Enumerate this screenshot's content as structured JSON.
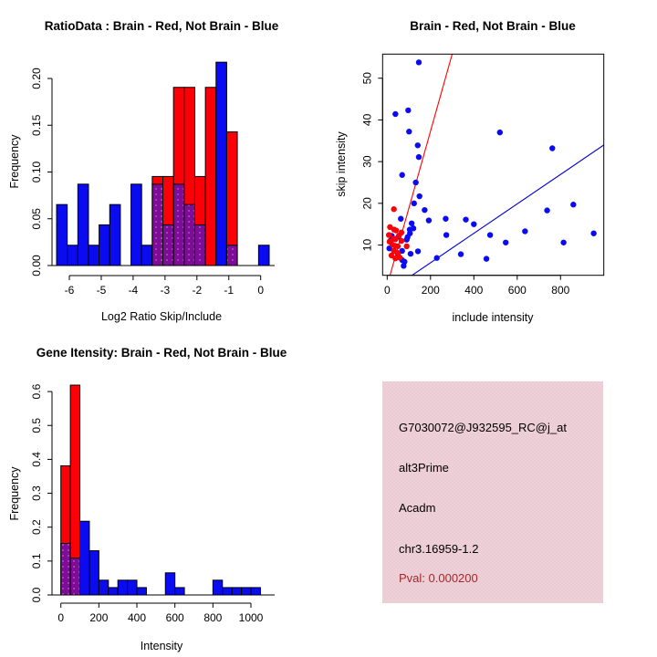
{
  "colors": {
    "red": "#fb0006",
    "blue": "#0b0bf2",
    "overlap_purple": "#7d0d96",
    "overlap_dot": "#c85ad6",
    "red_line": "#fb0006",
    "blue_line": "#0000d6",
    "axis": "#000000",
    "info_box_pink": "#f0c9d2",
    "pval_text": "#a32929"
  },
  "chart_data": [
    {
      "type": "bar",
      "subtype": "overlaid-histogram",
      "title": "RatioData : Brain - Red, Not Brain - Blue",
      "xlabel": "Log2 Ratio Skip/Include",
      "ylabel": "Frequency",
      "series": [
        {
          "name": "Brain",
          "color": "red"
        },
        {
          "name": "Not Brain",
          "color": "blue"
        }
      ],
      "bin_width": 0.3333,
      "x_ticks": [
        -6,
        -5,
        -4,
        -3,
        -2,
        -1,
        0
      ],
      "x_tick_labels": [
        "-6",
        "-5",
        "-4",
        "-3",
        "-2",
        "-1",
        "0"
      ],
      "y_ticks": [
        0,
        0.05,
        0.1,
        0.15,
        0.2
      ],
      "y_tick_labels": [
        "0.00",
        "0.05",
        "0.10",
        "0.15",
        "0.20"
      ],
      "xlim": [
        -6.5,
        0.3
      ],
      "ylim": [
        0,
        0.22
      ],
      "bins": [
        {
          "x": -6.4,
          "blue": 0.0652,
          "red": 0
        },
        {
          "x": -6.0667,
          "blue": 0.0217,
          "red": 0
        },
        {
          "x": -5.7333,
          "blue": 0.087,
          "red": 0
        },
        {
          "x": -5.4,
          "blue": 0.0217,
          "red": 0
        },
        {
          "x": -5.0667,
          "blue": 0.0435,
          "red": 0
        },
        {
          "x": -4.7333,
          "blue": 0.0652,
          "red": 0
        },
        {
          "x": -4.0667,
          "blue": 0.087,
          "red": 0
        },
        {
          "x": -3.7333,
          "blue": 0.0217,
          "red": 0
        },
        {
          "x": -3.4,
          "blue": 0.087,
          "red": 0.0952
        },
        {
          "x": -3.0667,
          "blue": 0.0435,
          "red": 0.0952
        },
        {
          "x": -2.7333,
          "blue": 0.087,
          "red": 0.1905
        },
        {
          "x": -2.4,
          "blue": 0.0652,
          "red": 0.1905
        },
        {
          "x": -2.0667,
          "blue": 0.0435,
          "red": 0.0952
        },
        {
          "x": -1.7333,
          "blue": 0,
          "red": 0.1905
        },
        {
          "x": -1.4,
          "blue": 0.2174,
          "red": 0
        },
        {
          "x": -1.0667,
          "blue": 0.0217,
          "red": 0.1429
        },
        {
          "x": -0.0667,
          "blue": 0.0217,
          "red": 0
        }
      ]
    },
    {
      "type": "scatter",
      "title": "Brain - Red, Not Brain - Blue",
      "xlabel": "include intensity",
      "ylabel": "skip intensity",
      "series": [
        {
          "name": "Brain",
          "color": "red"
        },
        {
          "name": "Not Brain",
          "color": "blue"
        }
      ],
      "x_ticks": [
        0,
        200,
        400,
        600,
        800
      ],
      "x_tick_labels": [
        "0",
        "200",
        "400",
        "600",
        "800"
      ],
      "y_ticks": [
        10,
        20,
        30,
        40,
        50
      ],
      "y_tick_labels": [
        "10",
        "20",
        "30",
        "40",
        "50"
      ],
      "xlim": [
        -21,
        1000
      ],
      "ylim": [
        2.75,
        55.5
      ],
      "red_points": [
        [
          31,
          18.6
        ],
        [
          13,
          14.3
        ],
        [
          32,
          13.7
        ],
        [
          41,
          13.5
        ],
        [
          66,
          13
        ],
        [
          8,
          12.4
        ],
        [
          55,
          12.3
        ],
        [
          30,
          11.5
        ],
        [
          38,
          11.4
        ],
        [
          66,
          11
        ],
        [
          11,
          10.8
        ],
        [
          24,
          10.1
        ],
        [
          37,
          9.8
        ],
        [
          49,
          9.7
        ],
        [
          90,
          9.7
        ],
        [
          31,
          8.6
        ],
        [
          46,
          8.2
        ],
        [
          49,
          7.9
        ],
        [
          20,
          7.5
        ],
        [
          38,
          6.8
        ],
        [
          58,
          7
        ]
      ],
      "blue_points": [
        [
          146,
          53.8
        ],
        [
          38,
          41.4
        ],
        [
          97,
          42.3
        ],
        [
          101,
          37.2
        ],
        [
          141,
          33.9
        ],
        [
          146,
          31.1
        ],
        [
          69,
          26.8
        ],
        [
          132,
          25
        ],
        [
          149,
          21.7
        ],
        [
          124,
          20
        ],
        [
          173,
          18.4
        ],
        [
          63,
          16.3
        ],
        [
          192,
          15.9
        ],
        [
          113,
          15.2
        ],
        [
          121,
          14
        ],
        [
          104,
          13.7
        ],
        [
          105,
          12.8
        ],
        [
          21,
          12.2
        ],
        [
          52,
          12
        ],
        [
          94,
          11.9
        ],
        [
          14,
          11
        ],
        [
          90,
          11.3
        ],
        [
          10,
          9.2
        ],
        [
          69,
          8.6
        ],
        [
          108,
          7.9
        ],
        [
          142,
          8.5
        ],
        [
          80,
          6
        ],
        [
          69,
          6.4
        ],
        [
          76,
          5
        ],
        [
          229,
          6.9
        ],
        [
          270,
          16.3
        ],
        [
          273,
          12.4
        ],
        [
          340,
          7.8
        ],
        [
          363,
          16.1
        ],
        [
          400,
          15
        ],
        [
          458,
          6.7
        ],
        [
          475,
          12.4
        ],
        [
          520,
          37
        ],
        [
          547,
          10.6
        ],
        [
          636,
          13.3
        ],
        [
          738,
          18.3
        ],
        [
          762,
          33.2
        ],
        [
          814,
          10.6
        ],
        [
          859,
          19.7
        ],
        [
          953,
          12.8
        ]
      ],
      "red_line": {
        "slope": 0.185,
        "intercept": 0.3
      },
      "blue_line": {
        "slope": 0.0353,
        "intercept": -1.31
      }
    },
    {
      "type": "bar",
      "subtype": "overlaid-histogram",
      "title": "Gene Itensity: Brain - Red, Not Brain - Blue",
      "xlabel": "Intensity",
      "ylabel": "Frequency",
      "series": [
        {
          "name": "Brain",
          "color": "red"
        },
        {
          "name": "Not Brain",
          "color": "blue"
        }
      ],
      "bin_width": 50,
      "x_ticks": [
        0,
        200,
        400,
        600,
        800,
        1000
      ],
      "x_tick_labels": [
        "0",
        "200",
        "400",
        "600",
        "800",
        "1000"
      ],
      "y_ticks": [
        0,
        0.1,
        0.2,
        0.3,
        0.4,
        0.5,
        0.6
      ],
      "y_tick_labels": [
        "0.0",
        "0.1",
        "0.2",
        "0.3",
        "0.4",
        "0.5",
        "0.6"
      ],
      "xlim": [
        0,
        1100
      ],
      "ylim": [
        0,
        0.63
      ],
      "bins": [
        {
          "x": 0,
          "blue": 0.1522,
          "red": 0.381
        },
        {
          "x": 50,
          "blue": 0.1087,
          "red": 0.619
        },
        {
          "x": 100,
          "blue": 0.2174,
          "red": 0
        },
        {
          "x": 150,
          "blue": 0.1304,
          "red": 0
        },
        {
          "x": 200,
          "blue": 0.0435,
          "red": 0
        },
        {
          "x": 250,
          "blue": 0.0217,
          "red": 0
        },
        {
          "x": 300,
          "blue": 0.0435,
          "red": 0
        },
        {
          "x": 350,
          "blue": 0.0435,
          "red": 0
        },
        {
          "x": 400,
          "blue": 0.0217,
          "red": 0
        },
        {
          "x": 550,
          "blue": 0.0652,
          "red": 0
        },
        {
          "x": 600,
          "blue": 0.0217,
          "red": 0
        },
        {
          "x": 800,
          "blue": 0.0435,
          "red": 0
        },
        {
          "x": 850,
          "blue": 0.0217,
          "red": 0
        },
        {
          "x": 900,
          "blue": 0.0217,
          "red": 0
        },
        {
          "x": 950,
          "blue": 0.0217,
          "red": 0
        },
        {
          "x": 1000,
          "blue": 0.0217,
          "red": 0
        }
      ]
    }
  ],
  "info_box": {
    "probe_id": "G7030072@J932595_RC@j_at",
    "splice_type": "alt3Prime",
    "gene_name": "Acadm",
    "location": "chr3.16959-1.2",
    "pval_text": "Pval: 0.000200"
  }
}
